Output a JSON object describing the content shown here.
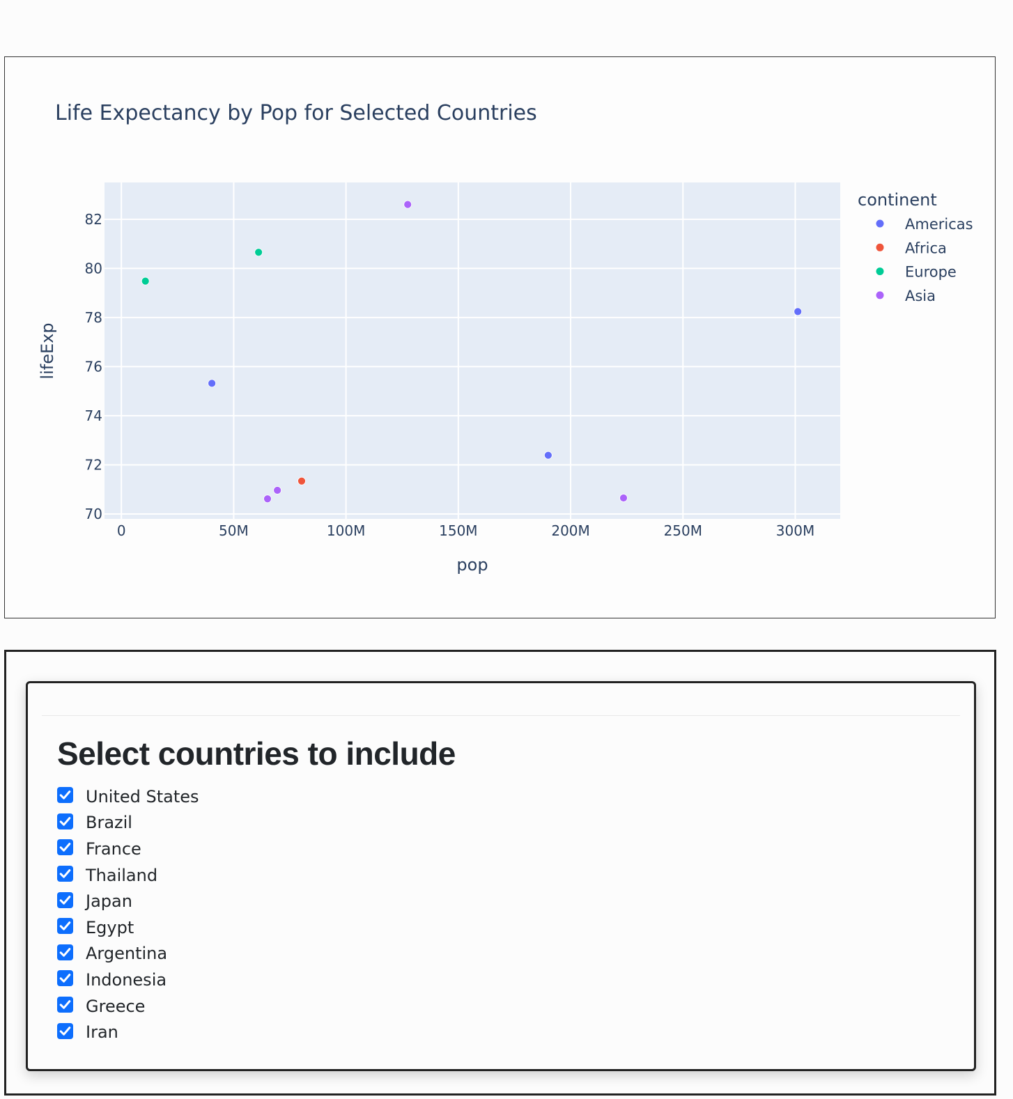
{
  "chart_data": {
    "type": "scatter",
    "title": "Life Expectancy by Pop for Selected Countries",
    "xlabel": "pop",
    "ylabel": "lifeExp",
    "xlim": [
      -7500000,
      320000000
    ],
    "ylim": [
      69.8,
      83.5
    ],
    "xticks": [
      {
        "value": 0,
        "label": "0"
      },
      {
        "value": 50000000,
        "label": "50M"
      },
      {
        "value": 100000000,
        "label": "100M"
      },
      {
        "value": 150000000,
        "label": "150M"
      },
      {
        "value": 200000000,
        "label": "200M"
      },
      {
        "value": 250000000,
        "label": "250M"
      },
      {
        "value": 300000000,
        "label": "300M"
      }
    ],
    "yticks": [
      70,
      72,
      74,
      76,
      78,
      80,
      82
    ],
    "grid": true,
    "legend_title": "continent",
    "legend_position": "right",
    "series": [
      {
        "name": "Americas",
        "color": "#636efa",
        "points": [
          {
            "x": 301139947,
            "y": 78.242
          },
          {
            "x": 190010647,
            "y": 72.39
          },
          {
            "x": 40301927,
            "y": 75.32
          }
        ]
      },
      {
        "name": "Africa",
        "color": "#ef553b",
        "points": [
          {
            "x": 80264543,
            "y": 71.338
          }
        ]
      },
      {
        "name": "Europe",
        "color": "#00cc96",
        "points": [
          {
            "x": 61083916,
            "y": 80.657
          },
          {
            "x": 10706290,
            "y": 79.483
          }
        ]
      },
      {
        "name": "Asia",
        "color": "#ab63fa",
        "points": [
          {
            "x": 127467972,
            "y": 82.603
          },
          {
            "x": 65068149,
            "y": 70.616
          },
          {
            "x": 69453570,
            "y": 70.964
          },
          {
            "x": 223547000,
            "y": 70.65
          }
        ]
      }
    ]
  },
  "form": {
    "heading": "Select countries to include",
    "countries": [
      {
        "label": "United States",
        "checked": true
      },
      {
        "label": "Brazil",
        "checked": true
      },
      {
        "label": "France",
        "checked": true
      },
      {
        "label": "Thailand",
        "checked": true
      },
      {
        "label": "Japan",
        "checked": true
      },
      {
        "label": "Egypt",
        "checked": true
      },
      {
        "label": "Argentina",
        "checked": true
      },
      {
        "label": "Indonesia",
        "checked": true
      },
      {
        "label": "Greece",
        "checked": true
      },
      {
        "label": "Iran",
        "checked": true
      }
    ]
  },
  "colors": {
    "checkbox_accent": "#0d6efd",
    "plot_background": "#e5ecf6",
    "text": "#2a3f5f"
  },
  "icons": {
    "checkbox": "check-icon"
  }
}
